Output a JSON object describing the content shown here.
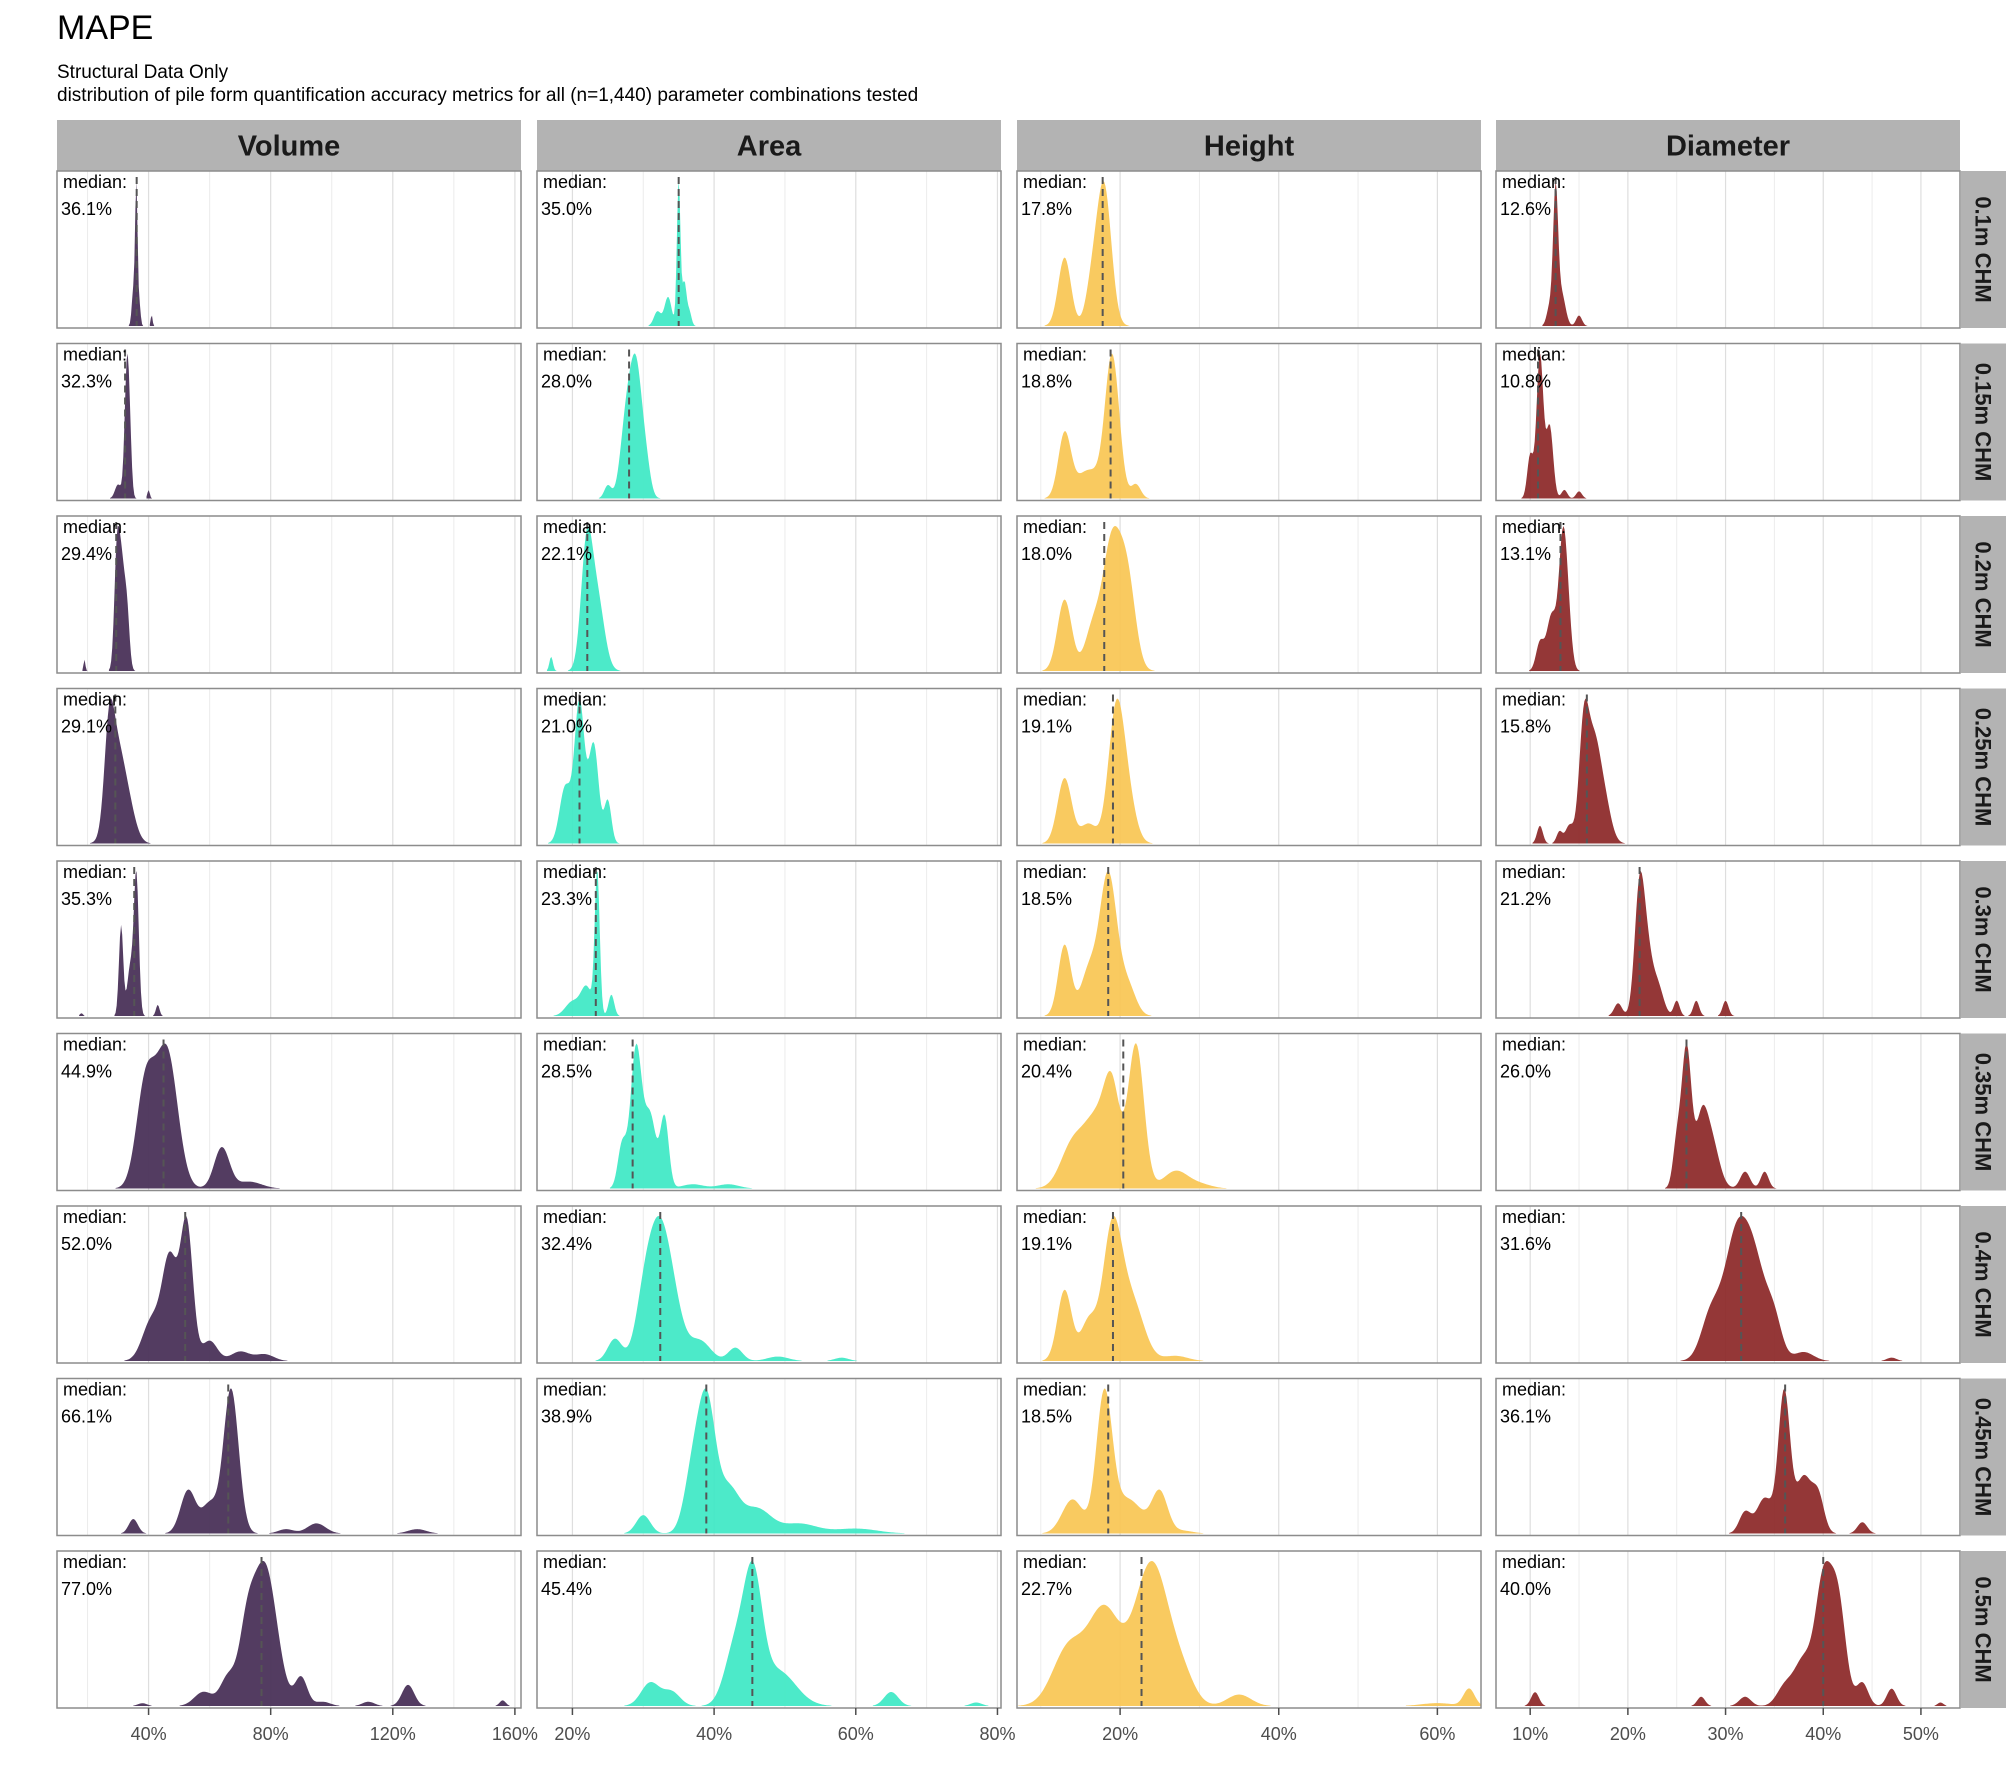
{
  "title": "MAPE",
  "subtitle_line1": "Structural Data Only",
  "subtitle_line2": "distribution of pile form quantification accuracy metrics for all (n=1,440) parameter combinations tested",
  "chart_data": {
    "type": "density",
    "title": "MAPE",
    "median_label": "median:",
    "columns": [
      {
        "name": "Volume",
        "color": "#4a3259",
        "xlim": [
          10,
          162
        ],
        "ticks": [
          40,
          80,
          120,
          160
        ],
        "tick_labels": [
          "40%",
          "80%",
          "120%",
          "160%"
        ]
      },
      {
        "name": "Area",
        "color": "#3de8c4",
        "xlim": [
          15,
          80.5
        ],
        "ticks": [
          20,
          40,
          60,
          80
        ],
        "tick_labels": [
          "20%",
          "40%",
          "60%",
          "80%"
        ]
      },
      {
        "name": "Height",
        "color": "#f9c552",
        "xlim": [
          7,
          65.5
        ],
        "ticks": [
          20,
          40,
          60
        ],
        "tick_labels": [
          "20%",
          "40%",
          "60%"
        ]
      },
      {
        "name": "Diameter",
        "color": "#8b2626",
        "xlim": [
          6.5,
          54
        ],
        "ticks": [
          10,
          20,
          30,
          40,
          50
        ],
        "tick_labels": [
          "10%",
          "20%",
          "30%",
          "40%",
          "50%"
        ]
      }
    ],
    "rows": [
      "0.1m CHM",
      "0.15m CHM",
      "0.2m CHM",
      "0.25m CHM",
      "0.3m CHM",
      "0.35m CHM",
      "0.4m CHM",
      "0.45m CHM",
      "0.5m CHM"
    ],
    "medians": [
      [
        36.1,
        35.0,
        17.8,
        12.6
      ],
      [
        32.3,
        28.0,
        18.8,
        10.8
      ],
      [
        29.4,
        22.1,
        18.0,
        13.1
      ],
      [
        29.1,
        21.0,
        19.1,
        15.8
      ],
      [
        35.3,
        23.3,
        18.5,
        21.2
      ],
      [
        44.9,
        28.5,
        20.4,
        26.0
      ],
      [
        52.0,
        32.4,
        19.1,
        31.6
      ],
      [
        66.1,
        38.9,
        18.5,
        36.1
      ],
      [
        77.0,
        45.4,
        22.7,
        40.0
      ]
    ],
    "median_labels": [
      [
        "36.1%",
        "35.0%",
        "17.8%",
        "12.6%"
      ],
      [
        "32.3%",
        "28.0%",
        "18.8%",
        "10.8%"
      ],
      [
        "29.4%",
        "22.1%",
        "18.0%",
        "13.1%"
      ],
      [
        "29.1%",
        "21.0%",
        "19.1%",
        "15.8%"
      ],
      [
        "35.3%",
        "23.3%",
        "18.5%",
        "21.2%"
      ],
      [
        "44.9%",
        "28.5%",
        "20.4%",
        "26.0%"
      ],
      [
        "52.0%",
        "32.4%",
        "19.1%",
        "31.6%"
      ],
      [
        "66.1%",
        "38.9%",
        "18.5%",
        "36.1%"
      ],
      [
        "77.0%",
        "45.4%",
        "22.7%",
        "40.0%"
      ]
    ],
    "density_peaks": [
      [
        [
          [
            36,
            1.0,
            0.4
          ],
          [
            35,
            0.25,
            0.5
          ],
          [
            37,
            0.15,
            0.4
          ],
          [
            41,
            0.08,
            0.3
          ]
        ],
        [
          [
            35,
            1.0,
            0.25
          ],
          [
            33.5,
            0.2,
            0.5
          ],
          [
            35.8,
            0.3,
            0.3
          ],
          [
            32,
            0.1,
            0.5
          ],
          [
            36.5,
            0.1,
            0.3
          ]
        ],
        [
          [
            18,
            1.0,
            0.9
          ],
          [
            13,
            0.5,
            0.8
          ],
          [
            16.5,
            0.3,
            0.8
          ]
        ],
        [
          [
            12.6,
            1.0,
            0.25
          ],
          [
            13.2,
            0.25,
            0.4
          ],
          [
            15,
            0.08,
            0.3
          ],
          [
            12,
            0.15,
            0.3
          ]
        ]
      ],
      [
        [
          [
            33,
            1.0,
            0.8
          ],
          [
            30,
            0.1,
            1.0
          ],
          [
            34,
            0.15,
            0.6
          ],
          [
            40,
            0.06,
            0.4
          ]
        ],
        [
          [
            29,
            1.0,
            0.9
          ],
          [
            27.5,
            0.5,
            0.8
          ],
          [
            25,
            0.1,
            0.5
          ],
          [
            30.5,
            0.15,
            0.6
          ]
        ],
        [
          [
            19,
            1.0,
            0.9
          ],
          [
            13,
            0.45,
            0.8
          ],
          [
            16,
            0.2,
            1.5
          ],
          [
            22,
            0.1,
            0.6
          ]
        ],
        [
          [
            11,
            1.0,
            0.35
          ],
          [
            12,
            0.5,
            0.35
          ],
          [
            13.5,
            0.06,
            0.3
          ],
          [
            15,
            0.05,
            0.3
          ],
          [
            10,
            0.3,
            0.3
          ]
        ]
      ],
      [
        [
          [
            31,
            1.0,
            1.2
          ],
          [
            29.5,
            0.7,
            0.8
          ],
          [
            33,
            0.4,
            0.8
          ],
          [
            19,
            0.1,
            0.3
          ]
        ],
        [
          [
            22,
            1.0,
            0.8
          ],
          [
            23.5,
            0.6,
            1.0
          ],
          [
            17,
            0.12,
            0.25
          ]
        ],
        [
          [
            19,
            1.0,
            1.2
          ],
          [
            13,
            0.55,
            0.9
          ],
          [
            21,
            0.6,
            1.0
          ],
          [
            16.5,
            0.3,
            1.0
          ]
        ],
        [
          [
            13.3,
            1.0,
            0.4
          ],
          [
            12.2,
            0.5,
            0.5
          ],
          [
            11,
            0.25,
            0.4
          ],
          [
            13.8,
            0.5,
            0.4
          ]
        ]
      ],
      [
        [
          [
            29,
            1.0,
            2.5
          ],
          [
            27,
            0.8,
            1.5
          ],
          [
            33,
            0.45,
            2.5
          ]
        ],
        [
          [
            21,
            1.0,
            0.7
          ],
          [
            23,
            0.7,
            0.7
          ],
          [
            19,
            0.4,
            0.8
          ],
          [
            25,
            0.3,
            0.5
          ]
        ],
        [
          [
            19.5,
            1.0,
            1.0
          ],
          [
            13,
            0.5,
            0.9
          ],
          [
            16,
            0.15,
            1.0
          ],
          [
            21,
            0.3,
            1.0
          ]
        ],
        [
          [
            15.5,
            1.0,
            0.5
          ],
          [
            16.5,
            0.7,
            0.6
          ],
          [
            17.5,
            0.4,
            0.7
          ],
          [
            14,
            0.15,
            0.4
          ],
          [
            11,
            0.15,
            0.3
          ],
          [
            13,
            0.1,
            0.3
          ]
        ]
      ],
      [
        [
          [
            36,
            1.0,
            0.8
          ],
          [
            31,
            0.65,
            0.7
          ],
          [
            34,
            0.35,
            1.0
          ],
          [
            43,
            0.08,
            0.6
          ],
          [
            18,
            0.02,
            0.5
          ]
        ],
        [
          [
            23.5,
            1.0,
            0.35
          ],
          [
            22,
            0.2,
            0.8
          ],
          [
            20,
            0.1,
            1.0
          ],
          [
            25.5,
            0.15,
            0.4
          ]
        ],
        [
          [
            18.5,
            1.0,
            1.1
          ],
          [
            13,
            0.5,
            0.8
          ],
          [
            16,
            0.3,
            1.0
          ],
          [
            21,
            0.2,
            1.0
          ]
        ],
        [
          [
            21.2,
            1.0,
            0.5
          ],
          [
            22,
            0.4,
            0.5
          ],
          [
            23,
            0.25,
            0.6
          ],
          [
            19,
            0.1,
            0.4
          ],
          [
            25,
            0.12,
            0.3
          ],
          [
            27,
            0.12,
            0.3
          ],
          [
            30,
            0.12,
            0.3
          ]
        ]
      ],
      [
        [
          [
            46,
            1.0,
            3.5
          ],
          [
            39,
            0.75,
            3.0
          ],
          [
            64,
            0.3,
            2.5
          ],
          [
            73,
            0.05,
            4.0
          ]
        ],
        [
          [
            29,
            1.0,
            0.8
          ],
          [
            31,
            0.5,
            0.8
          ],
          [
            33,
            0.5,
            0.6
          ],
          [
            27,
            0.3,
            0.6
          ],
          [
            37,
            0.03,
            1.5
          ],
          [
            42,
            0.03,
            1.5
          ]
        ],
        [
          [
            22,
            1.0,
            1.0
          ],
          [
            19,
            0.6,
            1.0
          ],
          [
            17,
            0.45,
            1.5
          ],
          [
            14,
            0.3,
            1.5
          ],
          [
            27,
            0.12,
            1.5
          ],
          [
            30,
            0.03,
            1.5
          ]
        ],
        [
          [
            26,
            1.0,
            0.5
          ],
          [
            27.5,
            0.4,
            0.6
          ],
          [
            28.5,
            0.35,
            0.8
          ],
          [
            25,
            0.3,
            0.4
          ],
          [
            32,
            0.12,
            0.5
          ],
          [
            34,
            0.12,
            0.4
          ]
        ]
      ],
      [
        [
          [
            52.5,
            1.0,
            2.0
          ],
          [
            47,
            0.75,
            2.5
          ],
          [
            41,
            0.3,
            3.0
          ],
          [
            60,
            0.15,
            2.5
          ],
          [
            70,
            0.07,
            3.0
          ],
          [
            78,
            0.05,
            3.0
          ]
        ],
        [
          [
            32,
            1.0,
            1.5
          ],
          [
            34,
            0.5,
            1.5
          ],
          [
            30,
            0.4,
            1.2
          ],
          [
            26,
            0.2,
            1.0
          ],
          [
            38,
            0.18,
            1.5
          ],
          [
            43,
            0.12,
            1.0
          ],
          [
            49,
            0.04,
            1.5
          ],
          [
            58,
            0.03,
            1.0
          ]
        ],
        [
          [
            19,
            1.0,
            1.2
          ],
          [
            13,
            0.55,
            0.9
          ],
          [
            21.5,
            0.45,
            1.5
          ],
          [
            16,
            0.3,
            1.0
          ],
          [
            27,
            0.04,
            1.5
          ]
        ],
        [
          [
            31,
            1.0,
            1.2
          ],
          [
            33,
            0.8,
            1.2
          ],
          [
            28.5,
            0.4,
            1.0
          ],
          [
            35,
            0.3,
            0.8
          ],
          [
            38,
            0.08,
            1.0
          ],
          [
            47,
            0.03,
            0.5
          ]
        ]
      ],
      [
        [
          [
            67,
            1.0,
            2.5
          ],
          [
            53,
            0.3,
            2.5
          ],
          [
            60,
            0.2,
            2.5
          ],
          [
            35,
            0.1,
            1.5
          ],
          [
            95,
            0.07,
            3.0
          ],
          [
            128,
            0.03,
            3.0
          ],
          [
            85,
            0.03,
            2.5
          ]
        ],
        [
          [
            39,
            1.0,
            1.2
          ],
          [
            37,
            0.5,
            1.2
          ],
          [
            42,
            0.35,
            1.5
          ],
          [
            30,
            0.15,
            1.0
          ],
          [
            46,
            0.2,
            2.0
          ],
          [
            52,
            0.08,
            2.5
          ],
          [
            60,
            0.04,
            3.0
          ]
        ],
        [
          [
            18,
            1.0,
            1.0
          ],
          [
            14,
            0.25,
            1.3
          ],
          [
            21,
            0.25,
            1.8
          ],
          [
            25,
            0.3,
            1.0
          ],
          [
            28,
            0.02,
            1.2
          ]
        ],
        [
          [
            36,
            1.0,
            0.6
          ],
          [
            38,
            0.4,
            0.8
          ],
          [
            34,
            0.25,
            0.8
          ],
          [
            32,
            0.15,
            0.6
          ],
          [
            39.5,
            0.25,
            0.6
          ],
          [
            44,
            0.08,
            0.5
          ]
        ]
      ],
      [
        [
          [
            78,
            1.0,
            4.0
          ],
          [
            72,
            0.4,
            2.5
          ],
          [
            66,
            0.2,
            2.5
          ],
          [
            58,
            0.1,
            3.0
          ],
          [
            90,
            0.2,
            2.0
          ],
          [
            97,
            0.03,
            2.5
          ],
          [
            125,
            0.15,
            2.0
          ],
          [
            156,
            0.04,
            1.0
          ],
          [
            112,
            0.03,
            2.0
          ],
          [
            38,
            0.02,
            1.5
          ]
        ],
        [
          [
            45.5,
            1.0,
            1.3
          ],
          [
            43,
            0.5,
            1.5
          ],
          [
            49,
            0.3,
            2.5
          ],
          [
            31,
            0.2,
            1.3
          ],
          [
            34,
            0.12,
            1.2
          ],
          [
            65,
            0.12,
            1.0
          ],
          [
            77,
            0.03,
            0.8
          ]
        ],
        [
          [
            24,
            1.0,
            2.2
          ],
          [
            18,
            0.65,
            2.0
          ],
          [
            13.5,
            0.4,
            2.0
          ],
          [
            28,
            0.15,
            1.5
          ],
          [
            35,
            0.08,
            1.5
          ],
          [
            60,
            0.02,
            2.0
          ],
          [
            64,
            0.12,
            0.7
          ]
        ],
        [
          [
            40,
            1.0,
            0.8
          ],
          [
            41.5,
            0.9,
            0.8
          ],
          [
            38,
            0.4,
            1.0
          ],
          [
            36,
            0.15,
            0.8
          ],
          [
            44,
            0.2,
            0.6
          ],
          [
            47,
            0.15,
            0.5
          ],
          [
            32,
            0.08,
            0.6
          ],
          [
            27.5,
            0.08,
            0.4
          ],
          [
            10.5,
            0.12,
            0.4
          ],
          [
            52,
            0.03,
            0.3
          ]
        ]
      ]
    ]
  }
}
